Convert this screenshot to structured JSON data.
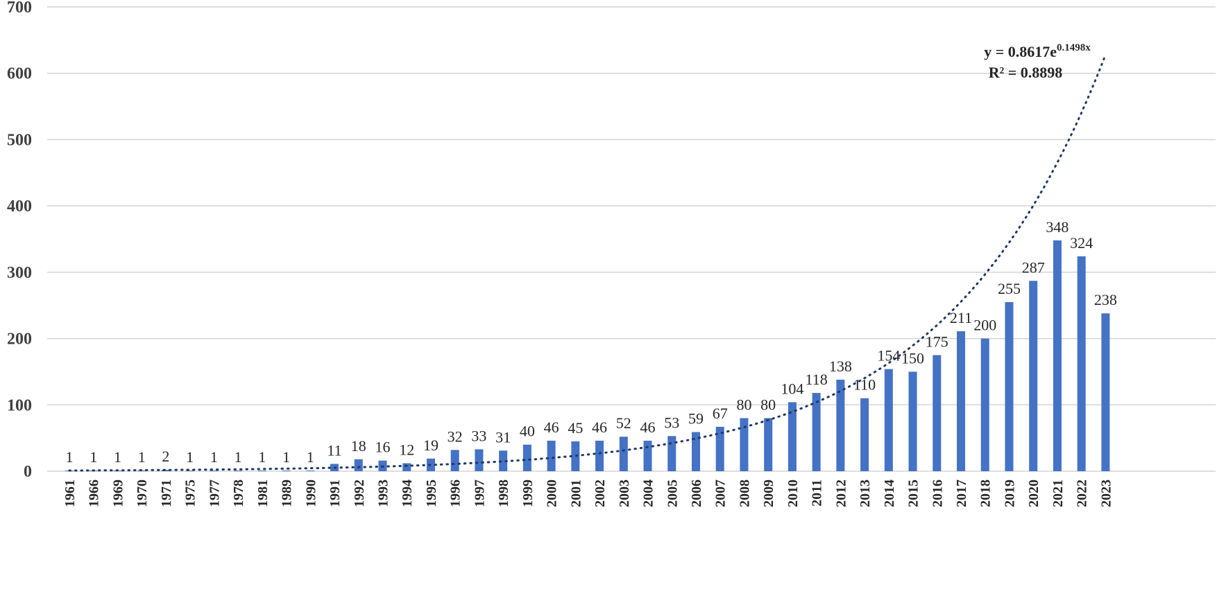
{
  "chart_data": {
    "type": "bar",
    "title": "",
    "xlabel": "",
    "ylabel": "",
    "ylim": [
      0,
      700
    ],
    "yticks": [
      0,
      100,
      200,
      300,
      400,
      500,
      600,
      700
    ],
    "grid": true,
    "legend": "none",
    "bar_color": "#4472c4",
    "trendline_color": "#1f3864",
    "categories": [
      "1961",
      "1966",
      "1969",
      "1970",
      "1971",
      "1975",
      "1977",
      "1978",
      "1981",
      "1989",
      "1990",
      "1991",
      "1992",
      "1993",
      "1994",
      "1995",
      "1996",
      "1997",
      "1998",
      "1999",
      "2000",
      "2001",
      "2002",
      "2003",
      "2004",
      "2005",
      "2006",
      "2007",
      "2008",
      "2009",
      "2010",
      "2011",
      "2012",
      "2013",
      "2014",
      "2015",
      "2016",
      "2017",
      "2018",
      "2019",
      "2020",
      "2021",
      "2022",
      "2023"
    ],
    "values": [
      1,
      1,
      1,
      1,
      2,
      1,
      1,
      1,
      1,
      1,
      1,
      11,
      18,
      16,
      12,
      19,
      32,
      33,
      31,
      40,
      46,
      45,
      46,
      52,
      46,
      53,
      59,
      67,
      80,
      80,
      104,
      118,
      138,
      110,
      154,
      150,
      175,
      211,
      200,
      255,
      287,
      348,
      324,
      238
    ],
    "trendline": {
      "type": "exponential",
      "coefficient": 0.8617,
      "exponent": 0.1498,
      "equation_prefix": "y = 0.8617e",
      "equation_exponent": "0.1498x",
      "r_squared_label": "R² = 0.8898"
    }
  }
}
